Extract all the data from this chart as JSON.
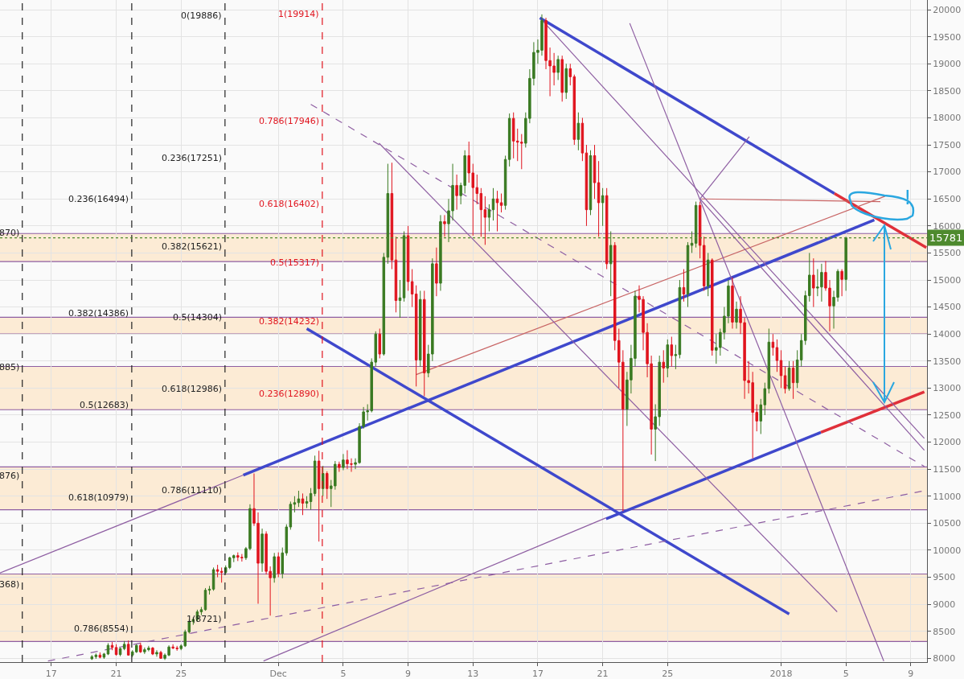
{
  "chart_data": {
    "type": "candlestick",
    "x": [
      "2017-11-19T12:00",
      "2017-11-19T18:00",
      "2017-11-20T00:00",
      "2017-11-20T06:00",
      "2017-11-20T12:00",
      "2017-11-20T18:00",
      "2017-11-21T00:00",
      "2017-11-21T06:00",
      "2017-11-21T12:00",
      "2017-11-21T18:00",
      "2017-11-22T00:00",
      "2017-11-22T06:00",
      "2017-11-22T12:00",
      "2017-11-22T18:00",
      "2017-11-23T00:00",
      "2017-11-23T06:00",
      "2017-11-23T12:00",
      "2017-11-23T18:00",
      "2017-11-24T00:00",
      "2017-11-24T06:00",
      "2017-11-24T12:00",
      "2017-11-24T18:00",
      "2017-11-25T00:00",
      "2017-11-25T06:00",
      "2017-11-25T12:00",
      "2017-11-25T18:00",
      "2017-11-26T00:00",
      "2017-11-26T06:00",
      "2017-11-26T12:00",
      "2017-11-26T18:00",
      "2017-11-27T00:00",
      "2017-11-27T06:00",
      "2017-11-27T12:00",
      "2017-11-27T18:00",
      "2017-11-28T00:00",
      "2017-11-28T06:00",
      "2017-11-28T12:00",
      "2017-11-28T18:00",
      "2017-11-29T00:00",
      "2017-11-29T06:00",
      "2017-11-29T12:00",
      "2017-11-29T18:00",
      "2017-11-30T00:00",
      "2017-11-30T06:00",
      "2017-11-30T12:00",
      "2017-11-30T18:00",
      "2017-12-01T00:00",
      "2017-12-01T06:00",
      "2017-12-01T12:00",
      "2017-12-01T18:00",
      "2017-12-02T00:00",
      "2017-12-02T06:00",
      "2017-12-02T12:00",
      "2017-12-02T18:00",
      "2017-12-03T00:00",
      "2017-12-03T06:00",
      "2017-12-03T12:00",
      "2017-12-03T18:00",
      "2017-12-04T00:00",
      "2017-12-04T06:00",
      "2017-12-04T12:00",
      "2017-12-04T18:00",
      "2017-12-05T00:00",
      "2017-12-05T06:00",
      "2017-12-05T12:00",
      "2017-12-05T18:00",
      "2017-12-06T00:00",
      "2017-12-06T06:00",
      "2017-12-06T12:00",
      "2017-12-06T18:00",
      "2017-12-07T00:00",
      "2017-12-07T06:00",
      "2017-12-07T12:00",
      "2017-12-07T18:00",
      "2017-12-08T00:00",
      "2017-12-08T06:00",
      "2017-12-08T12:00",
      "2017-12-08T18:00",
      "2017-12-09T00:00",
      "2017-12-09T06:00",
      "2017-12-09T12:00",
      "2017-12-09T18:00",
      "2017-12-10T00:00",
      "2017-12-10T06:00",
      "2017-12-10T12:00",
      "2017-12-10T18:00",
      "2017-12-11T00:00",
      "2017-12-11T06:00",
      "2017-12-11T12:00",
      "2017-12-11T18:00",
      "2017-12-12T00:00",
      "2017-12-12T06:00",
      "2017-12-12T12:00",
      "2017-12-12T18:00",
      "2017-12-13T00:00",
      "2017-12-13T06:00",
      "2017-12-13T12:00",
      "2017-12-13T18:00",
      "2017-12-14T00:00",
      "2017-12-14T06:00",
      "2017-12-14T12:00",
      "2017-12-14T18:00",
      "2017-12-15T00:00",
      "2017-12-15T06:00",
      "2017-12-15T12:00",
      "2017-12-15T18:00",
      "2017-12-16T00:00",
      "2017-12-16T06:00",
      "2017-12-16T12:00",
      "2017-12-16T18:00",
      "2017-12-17T00:00",
      "2017-12-17T06:00",
      "2017-12-17T12:00",
      "2017-12-17T18:00",
      "2017-12-18T00:00",
      "2017-12-18T06:00",
      "2017-12-18T12:00",
      "2017-12-18T18:00",
      "2017-12-19T00:00",
      "2017-12-19T06:00",
      "2017-12-19T12:00",
      "2017-12-19T18:00",
      "2017-12-20T00:00",
      "2017-12-20T06:00",
      "2017-12-20T12:00",
      "2017-12-20T18:00",
      "2017-12-21T00:00",
      "2017-12-21T06:00",
      "2017-12-21T12:00",
      "2017-12-21T18:00",
      "2017-12-22T00:00",
      "2017-12-22T06:00",
      "2017-12-22T12:00",
      "2017-12-22T18:00",
      "2017-12-23T00:00",
      "2017-12-23T06:00",
      "2017-12-23T12:00",
      "2017-12-23T18:00",
      "2017-12-24T00:00",
      "2017-12-24T06:00",
      "2017-12-24T12:00",
      "2017-12-24T18:00",
      "2017-12-25T00:00",
      "2017-12-25T06:00",
      "2017-12-25T12:00",
      "2017-12-25T18:00",
      "2017-12-26T00:00",
      "2017-12-26T06:00",
      "2017-12-26T12:00",
      "2017-12-26T18:00",
      "2017-12-27T00:00",
      "2017-12-27T06:00",
      "2017-12-27T12:00",
      "2017-12-27T18:00",
      "2017-12-28T00:00",
      "2017-12-28T06:00",
      "2017-12-28T12:00",
      "2017-12-28T18:00",
      "2017-12-29T00:00",
      "2017-12-29T06:00",
      "2017-12-29T12:00",
      "2017-12-29T18:00",
      "2017-12-30T00:00",
      "2017-12-30T06:00",
      "2017-12-30T12:00",
      "2017-12-30T18:00",
      "2017-12-31T00:00",
      "2017-12-31T06:00",
      "2017-12-31T12:00",
      "2017-12-31T18:00",
      "2018-01-01T00:00",
      "2018-01-01T06:00",
      "2018-01-01T12:00",
      "2018-01-01T18:00",
      "2018-01-02T00:00",
      "2018-01-02T06:00",
      "2018-01-02T12:00",
      "2018-01-02T18:00",
      "2018-01-03T00:00",
      "2018-01-03T06:00",
      "2018-01-03T12:00",
      "2018-01-03T18:00",
      "2018-01-04T00:00",
      "2018-01-04T06:00",
      "2018-01-04T12:00",
      "2018-01-04T18:00",
      "2018-01-05T00:00"
    ],
    "ohlc": [
      [
        7990,
        8060,
        7970,
        8030
      ],
      [
        8030,
        8090,
        7990,
        8060
      ],
      [
        8060,
        8110,
        8000,
        8020
      ],
      [
        8020,
        8100,
        7990,
        8080
      ],
      [
        8080,
        8280,
        8060,
        8240
      ],
      [
        8240,
        8300,
        8150,
        8200
      ],
      [
        8200,
        8260,
        8050,
        8070
      ],
      [
        8070,
        8200,
        8040,
        8180
      ],
      [
        8180,
        8320,
        8150,
        8260
      ],
      [
        8260,
        8330,
        8050,
        8060
      ],
      [
        8060,
        8150,
        8020,
        8120
      ],
      [
        8120,
        8260,
        8100,
        8240
      ],
      [
        8240,
        8290,
        8100,
        8120
      ],
      [
        8120,
        8200,
        8080,
        8160
      ],
      [
        8160,
        8230,
        8130,
        8190
      ],
      [
        8190,
        8210,
        8060,
        8080
      ],
      [
        8080,
        8150,
        8030,
        8110
      ],
      [
        8110,
        8140,
        7990,
        8000
      ],
      [
        8000,
        8090,
        7970,
        8060
      ],
      [
        8060,
        8240,
        8040,
        8210
      ],
      [
        8210,
        8260,
        8170,
        8190
      ],
      [
        8190,
        8230,
        8140,
        8180
      ],
      [
        8180,
        8260,
        8150,
        8230
      ],
      [
        8230,
        8530,
        8210,
        8490
      ],
      [
        8490,
        8720,
        8460,
        8680
      ],
      [
        8680,
        8760,
        8620,
        8720
      ],
      [
        8720,
        8900,
        8690,
        8860
      ],
      [
        8860,
        8950,
        8800,
        8900
      ],
      [
        8900,
        9300,
        8880,
        9260
      ],
      [
        9260,
        9340,
        9180,
        9280
      ],
      [
        9280,
        9680,
        9250,
        9640
      ],
      [
        9640,
        9730,
        9500,
        9610
      ],
      [
        9610,
        9680,
        9400,
        9590
      ],
      [
        9590,
        9720,
        9550,
        9680
      ],
      [
        9680,
        9880,
        9650,
        9860
      ],
      [
        9860,
        9920,
        9780,
        9900
      ],
      [
        9900,
        9960,
        9800,
        9870
      ],
      [
        9870,
        9930,
        9790,
        9860
      ],
      [
        9860,
        10060,
        9820,
        10030
      ],
      [
        10030,
        10850,
        10000,
        10770
      ],
      [
        10770,
        11420,
        10450,
        10500
      ],
      [
        10500,
        10700,
        9010,
        9760
      ],
      [
        9760,
        10400,
        9600,
        10300
      ],
      [
        10300,
        10350,
        9550,
        9610
      ],
      [
        9610,
        9700,
        8790,
        9490
      ],
      [
        9490,
        9950,
        9400,
        9880
      ],
      [
        9880,
        9960,
        9500,
        9570
      ],
      [
        9570,
        10050,
        9480,
        9950
      ],
      [
        9950,
        10480,
        9900,
        10430
      ],
      [
        10430,
        10900,
        10380,
        10850
      ],
      [
        10850,
        11000,
        10700,
        10880
      ],
      [
        10880,
        11100,
        10800,
        10950
      ],
      [
        10950,
        11050,
        10650,
        10870
      ],
      [
        10870,
        11000,
        10780,
        10900
      ],
      [
        10900,
        11150,
        10750,
        11050
      ],
      [
        11050,
        11750,
        11000,
        11650
      ],
      [
        11650,
        11840,
        10160,
        11140
      ],
      [
        11140,
        11560,
        11000,
        11420
      ],
      [
        11420,
        11460,
        10950,
        11140
      ],
      [
        11140,
        11300,
        10800,
        11190
      ],
      [
        11190,
        11650,
        11120,
        11590
      ],
      [
        11590,
        11640,
        11450,
        11530
      ],
      [
        11530,
        11780,
        11480,
        11670
      ],
      [
        11670,
        11850,
        11500,
        11600
      ],
      [
        11600,
        11700,
        11450,
        11590
      ],
      [
        11590,
        11700,
        11500,
        11620
      ],
      [
        11620,
        12350,
        11600,
        12290
      ],
      [
        12290,
        12650,
        12250,
        12560
      ],
      [
        12560,
        12700,
        12400,
        12580
      ],
      [
        12580,
        13550,
        12550,
        13480
      ],
      [
        13480,
        14050,
        13400,
        14000
      ],
      [
        14000,
        14100,
        13550,
        13630
      ],
      [
        13630,
        15500,
        13600,
        15420
      ],
      [
        15420,
        17150,
        15300,
        16600
      ],
      [
        16600,
        17170,
        15200,
        15370
      ],
      [
        15370,
        15800,
        14400,
        14620
      ],
      [
        14620,
        15000,
        14300,
        14670
      ],
      [
        14670,
        15900,
        14600,
        15820
      ],
      [
        15820,
        16000,
        14800,
        14970
      ],
      [
        14970,
        15200,
        14500,
        14740
      ],
      [
        14740,
        14900,
        13030,
        13520
      ],
      [
        13520,
        14800,
        13400,
        14640
      ],
      [
        14640,
        14800,
        12850,
        13280
      ],
      [
        13280,
        13800,
        13200,
        13630
      ],
      [
        13630,
        15400,
        13500,
        15300
      ],
      [
        15300,
        15600,
        14700,
        14940
      ],
      [
        14940,
        16200,
        14800,
        16080
      ],
      [
        16080,
        16200,
        15800,
        16040
      ],
      [
        16040,
        16500,
        15700,
        16280
      ],
      [
        16280,
        17150,
        16100,
        16750
      ],
      [
        16750,
        16950,
        16300,
        16560
      ],
      [
        16560,
        16800,
        16400,
        16750
      ],
      [
        16750,
        17400,
        16600,
        17300
      ],
      [
        17300,
        17560,
        16800,
        16980
      ],
      [
        16980,
        17150,
        15820,
        16710
      ],
      [
        16710,
        16950,
        16400,
        16600
      ],
      [
        16600,
        16700,
        15800,
        16300
      ],
      [
        16300,
        16550,
        15650,
        16160
      ],
      [
        16160,
        16400,
        15900,
        16300
      ],
      [
        16300,
        16700,
        16100,
        16500
      ],
      [
        16500,
        16650,
        15900,
        16430
      ],
      [
        16430,
        16600,
        16250,
        16380
      ],
      [
        16380,
        17300,
        16300,
        17230
      ],
      [
        17230,
        18080,
        17100,
        17990
      ],
      [
        17990,
        18100,
        17250,
        17570
      ],
      [
        17570,
        17800,
        17200,
        17550
      ],
      [
        17550,
        17700,
        17050,
        17530
      ],
      [
        17530,
        18100,
        17450,
        17990
      ],
      [
        17990,
        18900,
        17900,
        18730
      ],
      [
        18730,
        19400,
        18600,
        19210
      ],
      [
        19210,
        19450,
        19000,
        19250
      ],
      [
        19250,
        19914,
        19150,
        19800
      ],
      [
        19800,
        19850,
        18900,
        19060
      ],
      [
        19060,
        19300,
        18400,
        18960
      ],
      [
        18960,
        19200,
        18600,
        18840
      ],
      [
        18840,
        19150,
        18700,
        19080
      ],
      [
        19080,
        19150,
        18300,
        18470
      ],
      [
        18470,
        19000,
        18350,
        18910
      ],
      [
        18910,
        19000,
        18600,
        18760
      ],
      [
        18760,
        18800,
        17500,
        17600
      ],
      [
        17600,
        18100,
        17400,
        17900
      ],
      [
        17900,
        18000,
        17200,
        17350
      ],
      [
        17350,
        17500,
        16000,
        16300
      ],
      [
        16300,
        17400,
        16200,
        17300
      ],
      [
        17300,
        17500,
        16500,
        16800
      ],
      [
        16800,
        17200,
        15800,
        16430
      ],
      [
        16430,
        16700,
        16000,
        16560
      ],
      [
        16560,
        16700,
        15200,
        15300
      ],
      [
        15300,
        15900,
        14700,
        15640
      ],
      [
        15640,
        15700,
        13700,
        13880
      ],
      [
        13880,
        14100,
        13000,
        13480
      ],
      [
        13480,
        13700,
        10720,
        12610
      ],
      [
        12610,
        13300,
        12300,
        13150
      ],
      [
        13150,
        13800,
        12900,
        13550
      ],
      [
        13550,
        14800,
        13400,
        14700
      ],
      [
        14700,
        14900,
        14400,
        14640
      ],
      [
        14640,
        14700,
        13700,
        14030
      ],
      [
        14030,
        14200,
        13200,
        13450
      ],
      [
        13450,
        13600,
        11770,
        12240
      ],
      [
        12240,
        12700,
        11650,
        12470
      ],
      [
        12470,
        13600,
        12300,
        13480
      ],
      [
        13480,
        13700,
        13100,
        13370
      ],
      [
        13370,
        13900,
        13200,
        13800
      ],
      [
        13800,
        13950,
        13400,
        13600
      ],
      [
        13600,
        13800,
        13350,
        13620
      ],
      [
        13620,
        15000,
        13550,
        14860
      ],
      [
        14860,
        15200,
        14600,
        14740
      ],
      [
        14740,
        15700,
        14500,
        15640
      ],
      [
        15640,
        15900,
        15500,
        15680
      ],
      [
        15680,
        16450,
        15600,
        16380
      ],
      [
        16380,
        16450,
        15400,
        15640
      ],
      [
        15640,
        15800,
        14800,
        14890
      ],
      [
        14890,
        15500,
        14700,
        15370
      ],
      [
        15370,
        15400,
        13600,
        13700
      ],
      [
        13700,
        14000,
        13450,
        13750
      ],
      [
        13750,
        14100,
        13600,
        14030
      ],
      [
        14030,
        14500,
        13900,
        14330
      ],
      [
        14330,
        15000,
        14200,
        14890
      ],
      [
        14890,
        15050,
        14100,
        14220
      ],
      [
        14220,
        14600,
        14100,
        14460
      ],
      [
        14460,
        14700,
        14000,
        14210
      ],
      [
        14210,
        14300,
        12800,
        13140
      ],
      [
        13140,
        13500,
        12900,
        13100
      ],
      [
        13100,
        13300,
        11700,
        12550
      ],
      [
        12550,
        12700,
        12200,
        12390
      ],
      [
        12390,
        12800,
        12150,
        12690
      ],
      [
        12690,
        13100,
        12500,
        12990
      ],
      [
        12990,
        14100,
        12900,
        13850
      ],
      [
        13850,
        14000,
        13600,
        13750
      ],
      [
        13750,
        13900,
        13300,
        13510
      ],
      [
        13510,
        13700,
        13000,
        13230
      ],
      [
        13230,
        13400,
        12900,
        12990
      ],
      [
        12990,
        13500,
        12950,
        13370
      ],
      [
        13370,
        13500,
        12800,
        13100
      ],
      [
        13100,
        13700,
        13000,
        13520
      ],
      [
        13520,
        14000,
        13400,
        13880
      ],
      [
        13880,
        14800,
        13800,
        14710
      ],
      [
        14710,
        15500,
        14600,
        15090
      ],
      [
        15090,
        15400,
        14500,
        14850
      ],
      [
        14850,
        15200,
        14700,
        14870
      ],
      [
        14870,
        15300,
        14600,
        15140
      ],
      [
        15140,
        15350,
        14800,
        14850
      ],
      [
        14850,
        15000,
        14050,
        14520
      ],
      [
        14520,
        14800,
        14100,
        14680
      ],
      [
        14680,
        15200,
        14600,
        15160
      ],
      [
        15160,
        15200,
        14700,
        15010
      ],
      [
        15010,
        15800,
        14800,
        15781
      ]
    ],
    "series": [
      {
        "type": "line",
        "color": "#3f48cc",
        "x": [
          "2017-12-17T03:00",
          "2018-01-04T07:00"
        ],
        "values": [
          19850,
          16600
        ]
      },
      {
        "type": "line",
        "color": "#e0303a",
        "x": [
          "2018-01-04T07:00",
          "2018-01-09T23:00"
        ],
        "values": [
          16600,
          15600
        ]
      },
      {
        "type": "line",
        "color": "#3f48cc",
        "x": [
          "2017-11-28T20:00",
          "2018-01-06T18:00"
        ],
        "values": [
          11390,
          16110
        ]
      },
      {
        "type": "line",
        "color": "#8e5ea2",
        "x": [
          "2017-11-13T20:00",
          "2017-11-28T20:00"
        ],
        "values": [
          9580,
          11390
        ]
      },
      {
        "type": "line",
        "color": "#3f48cc",
        "x": [
          "2017-12-02T18:00",
          "2018-01-01T12:00"
        ],
        "values": [
          14100,
          8820
        ]
      },
      {
        "type": "line",
        "color": "#3f48cc",
        "x": [
          "2017-12-21T05:00",
          "2018-01-03T11:00"
        ],
        "values": [
          10580,
          12180
        ]
      },
      {
        "type": "line",
        "color": "#e0303a",
        "x": [
          "2018-01-03T11:00",
          "2018-01-09T20:00"
        ],
        "values": [
          12180,
          12930
        ]
      },
      {
        "type": "line",
        "color": "#8e5ea2",
        "x": [
          "2017-11-30T02:00",
          "2017-12-21T05:00"
        ],
        "values": [
          7950,
          10600
        ]
      },
      {
        "type": "line",
        "color": "#c86464",
        "x": [
          "2017-12-09T12:00",
          "2018-01-07T10:00"
        ],
        "values": [
          13250,
          16550
        ]
      },
      {
        "type": "line",
        "color": "#c86464",
        "x": [
          "2017-12-27T02:00",
          "2018-01-07T03:00"
        ],
        "values": [
          16500,
          16450
        ]
      },
      {
        "type": "line",
        "color": "#8e5ea2",
        "x": [
          "2017-12-22T16:00",
          "2018-01-07T08:00"
        ],
        "values": [
          19750,
          7950
        ]
      },
      {
        "type": "line",
        "color": "#8e5ea2",
        "x": [
          "2017-12-27T00:00",
          "2017-12-30T01:00"
        ],
        "values": [
          16500,
          17650
        ]
      },
      {
        "type": "line",
        "color": "#8e5ea2",
        "x": [
          "2017-12-27T00:00",
          "2018-01-09T20:00"
        ],
        "values": [
          16500,
          11850
        ]
      },
      {
        "type": "line",
        "color": "#8e5ea2",
        "x": [
          "2017-12-17T06:00",
          "2018-01-09T20:00"
        ],
        "values": [
          19810,
          12070
        ]
      },
      {
        "type": "line",
        "color": "#8e5ea2",
        "x": [
          "2017-12-07T05:00",
          "2018-01-04T11:00"
        ],
        "values": [
          17530,
          8860
        ]
      },
      {
        "type": "line",
        "color": "#8e5ea2",
        "line_style": "dashed",
        "x": [
          "2017-12-03T00:00",
          "2018-01-09T20:00"
        ],
        "values": [
          18250,
          11550
        ]
      },
      {
        "type": "line",
        "color": "#8e5ea2",
        "line_style": "dashed",
        "x": [
          "2017-11-16T19:00",
          "2018-01-09T20:00"
        ],
        "values": [
          7950,
          11100
        ]
      }
    ],
    "xlim": [
      "2017-11-13T20:00",
      "2018-01-10T00:00"
    ],
    "xticks": [
      {
        "value": "2017-11-17",
        "label": "17"
      },
      {
        "value": "2017-11-21",
        "label": "21"
      },
      {
        "value": "2017-11-25",
        "label": "25"
      },
      {
        "value": "2017-12-01",
        "label": "Dec"
      },
      {
        "value": "2017-12-05",
        "label": "5"
      },
      {
        "value": "2017-12-09",
        "label": "9"
      },
      {
        "value": "2017-12-13",
        "label": "13"
      },
      {
        "value": "2017-12-17",
        "label": "17"
      },
      {
        "value": "2017-12-21",
        "label": "21"
      },
      {
        "value": "2017-12-25",
        "label": "25"
      },
      {
        "value": "2018-01-01",
        "label": "2018"
      },
      {
        "value": "2018-01-05",
        "label": "5"
      },
      {
        "value": "2018-01-09",
        "label": "9"
      }
    ],
    "ylim": [
      7930,
      20180
    ],
    "yticks": [
      8000,
      8500,
      9000,
      9500,
      10000,
      10500,
      11000,
      11500,
      12000,
      12500,
      13000,
      13500,
      14000,
      14500,
      15000,
      15500,
      16000,
      16500,
      17000,
      17500,
      18000,
      18500,
      19000,
      19500,
      20000
    ],
    "grid": true,
    "bands": [
      {
        "axis": "y",
        "from": 15340,
        "to": 15860,
        "color": "#fcebd5"
      },
      {
        "axis": "y",
        "from": 14000,
        "to": 14310,
        "color": "#fcebd5"
      },
      {
        "axis": "y",
        "from": 12600,
        "to": 13400,
        "color": "#fcebd5"
      },
      {
        "axis": "y",
        "from": 10750,
        "to": 11540,
        "color": "#fcebd5"
      },
      {
        "axis": "y",
        "from": 8310,
        "to": 9560,
        "color": "#fcebd5"
      }
    ],
    "ref_lines": [
      {
        "axis": "x",
        "value": "2017-11-15T05:00",
        "color": "#222222",
        "line_style": "dashed"
      },
      {
        "axis": "x",
        "value": "2017-11-21T23:00",
        "color": "#222222",
        "line_style": "dashed"
      },
      {
        "axis": "x",
        "value": "2017-11-27T17:00",
        "color": "#222222",
        "line_style": "dashed"
      },
      {
        "axis": "x",
        "value": "2017-12-03T17:00",
        "color": "#e0141e",
        "line_style": "dashed"
      },
      {
        "axis": "y",
        "value": 15781,
        "label": "15781",
        "color": "#4e8a2e",
        "line_style": "dotted"
      }
    ],
    "annotations": [
      {
        "text": "870)",
        "x": "2017-11-15T05:00",
        "y": 15870
      },
      {
        "text": "885)",
        "x": "2017-11-15T05:00",
        "y": 13385
      },
      {
        "text": "876)",
        "x": "2017-11-15T05:00",
        "y": 11376
      },
      {
        "text": "368)",
        "x": "2017-11-15T05:00",
        "y": 9368
      },
      {
        "text": "0.236(16494)",
        "x": "2017-11-21T23:00",
        "y": 16494
      },
      {
        "text": "0.382(14386)",
        "x": "2017-11-21T23:00",
        "y": 14386
      },
      {
        "text": "0.5(12683)",
        "x": "2017-11-21T23:00",
        "y": 12683
      },
      {
        "text": "0.618(10979)",
        "x": "2017-11-21T23:00",
        "y": 10979
      },
      {
        "text": "0.786(8554)",
        "x": "2017-11-21T23:00",
        "y": 8554
      },
      {
        "text": "0(19886)",
        "x": "2017-11-27T17:00",
        "y": 19886
      },
      {
        "text": "0.236(17251)",
        "x": "2017-11-27T17:00",
        "y": 17251
      },
      {
        "text": "0.382(15621)",
        "x": "2017-11-27T17:00",
        "y": 15621
      },
      {
        "text": "0.5(14304)",
        "x": "2017-11-27T17:00",
        "y": 14304
      },
      {
        "text": "0.618(12986)",
        "x": "2017-11-27T17:00",
        "y": 12986
      },
      {
        "text": "0.786(11110)",
        "x": "2017-11-27T17:00",
        "y": 11110
      },
      {
        "text": "1(8721)",
        "x": "2017-11-27T17:00",
        "y": 8721
      },
      {
        "text": "1(19914)",
        "x": "2017-12-03T17:00",
        "y": 19914
      },
      {
        "text": "0.786(17946)",
        "x": "2017-12-03T17:00",
        "y": 17946
      },
      {
        "text": "0.618(16402)",
        "x": "2017-12-03T17:00",
        "y": 16402
      },
      {
        "text": "0.5(15317)",
        "x": "2017-12-03T17:00",
        "y": 15317
      },
      {
        "text": "0.382(14232)",
        "x": "2017-12-03T17:00",
        "y": 14232
      },
      {
        "text": "0.236(12890)",
        "x": "2017-12-03T17:00",
        "y": 12890
      },
      "!"
    ]
  }
}
